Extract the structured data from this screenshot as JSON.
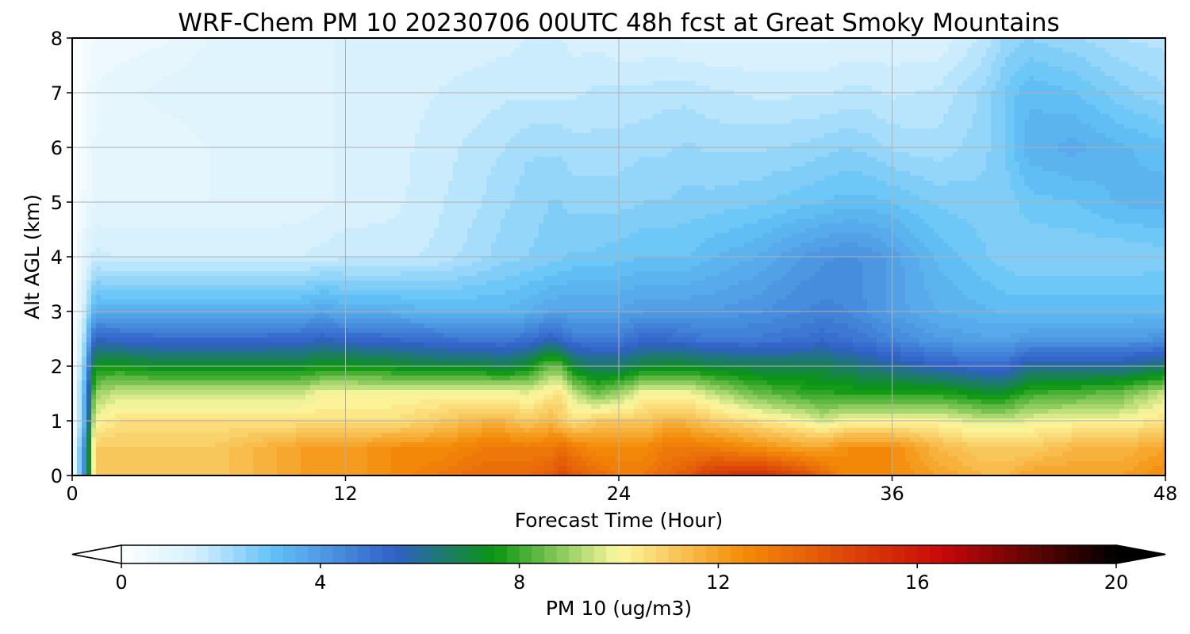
{
  "chart_data": {
    "type": "heatmap",
    "title": "WRF-Chem PM 10  20230706 00UTC 48h fcst at Great Smoky Mountains",
    "xlabel": "Forecast Time (Hour)",
    "ylabel": "Alt AGL (km)",
    "xlim": [
      0,
      48
    ],
    "ylim": [
      0,
      8
    ],
    "xticks": [
      0,
      12,
      24,
      36,
      48
    ],
    "yticks": [
      0,
      1,
      2,
      3,
      4,
      5,
      6,
      7,
      8
    ],
    "grid": true,
    "colorbar": {
      "label": "PM 10  (ug/m3)",
      "orientation": "horizontal",
      "placement": "bottom",
      "range": [
        0,
        20
      ],
      "ticks": [
        0,
        4,
        8,
        12,
        16,
        20
      ],
      "extend": "both",
      "colors": [
        "#ffffff",
        "#d4f0fc",
        "#64c3f6",
        "#3060c8",
        "#0a9610",
        "#fcf8a0",
        "#f48c08",
        "#c80808",
        "#000000"
      ]
    },
    "time_hours": [
      0,
      0.5,
      1,
      2,
      4,
      6,
      8,
      10,
      11,
      12,
      14,
      16,
      18,
      19,
      20,
      21,
      21.5,
      22,
      23,
      24,
      25,
      26,
      27,
      28,
      30,
      32,
      33,
      34,
      35,
      36,
      38,
      40,
      41,
      42,
      44,
      46,
      48
    ],
    "altitudes_km": [
      0,
      0.5,
      1,
      1.5,
      2,
      2.5,
      3,
      4,
      5,
      6,
      7,
      8
    ],
    "pm10_values": [
      [
        0,
        4,
        11,
        11,
        11,
        11,
        11.5,
        12,
        12.2,
        12,
        12.5,
        13,
        13.5,
        13.5,
        13.5,
        14,
        14.5,
        14,
        13.5,
        13,
        13,
        13.5,
        14,
        15,
        15.5,
        14.5,
        13.5,
        12.5,
        12.5,
        12.5,
        12,
        11.5,
        11.5,
        12,
        12,
        12,
        12.5
      ],
      [
        0,
        4,
        11,
        11,
        11,
        11,
        11.5,
        12,
        12,
        12,
        12.5,
        12.5,
        13,
        13,
        13,
        13,
        13.5,
        13,
        12.5,
        12.5,
        12.5,
        13,
        13,
        13,
        12.5,
        12,
        12,
        12.5,
        12.5,
        12.5,
        11.5,
        11,
        11,
        11,
        11.5,
        11.5,
        12
      ],
      [
        0,
        3,
        10,
        10.5,
        10.5,
        10.5,
        10.5,
        10.5,
        10.5,
        10.5,
        10.5,
        11,
        11.5,
        11.5,
        11,
        11.5,
        11,
        10.5,
        11,
        11,
        11,
        11.5,
        11.5,
        11,
        10.5,
        10,
        9.5,
        10,
        10,
        10,
        10,
        9.5,
        9.5,
        9.8,
        10,
        10,
        10.5
      ],
      [
        0,
        3,
        9,
        9.5,
        9.5,
        9.5,
        9.5,
        9.5,
        10,
        10,
        10,
        10,
        10,
        10,
        9.8,
        10.3,
        10.5,
        9.5,
        8.5,
        9,
        10,
        10,
        10,
        9.5,
        8.5,
        8,
        7.8,
        7.8,
        7.8,
        7.8,
        7.8,
        7.3,
        7.3,
        8,
        8.2,
        8.5,
        9.5
      ],
      [
        0,
        2.5,
        7.5,
        7.5,
        7.2,
        7.2,
        7.2,
        7.2,
        7.5,
        7.5,
        7.3,
        7,
        7,
        6.8,
        7.3,
        8.5,
        8.3,
        7,
        6.5,
        6.5,
        7,
        7.2,
        7.2,
        7,
        6.8,
        6.8,
        6.8,
        6.5,
        6.2,
        6,
        5.5,
        5.2,
        5.2,
        6,
        6,
        6,
        6.5
      ],
      [
        0,
        2,
        5.5,
        5.3,
        5.2,
        5.2,
        5.2,
        5.3,
        5.5,
        5.3,
        5.2,
        5,
        4.8,
        4.8,
        5,
        5.5,
        5.2,
        4.8,
        4.8,
        4.8,
        5.2,
        5.2,
        5,
        4.8,
        4.8,
        5,
        5.2,
        5,
        4.8,
        4.5,
        4,
        3.8,
        3.8,
        4,
        4,
        4,
        4.2
      ],
      [
        0,
        1.5,
        3.5,
        3.5,
        3.5,
        3.5,
        3.5,
        3.5,
        3.8,
        3.5,
        3.5,
        3.3,
        3.3,
        3.3,
        3.5,
        3.8,
        3.8,
        3.8,
        3.8,
        3.8,
        4,
        4,
        4,
        4,
        4.2,
        4.5,
        4.6,
        4.5,
        4.2,
        3.9,
        3.5,
        3.3,
        3.2,
        3.2,
        3.2,
        3.2,
        3.2
      ],
      [
        0,
        1,
        1.6,
        1.5,
        1.5,
        1.5,
        1.5,
        1.5,
        1.6,
        1.7,
        1.7,
        1.8,
        2.2,
        2.4,
        2.5,
        2.6,
        2.7,
        2.8,
        2.8,
        2.9,
        3,
        3,
        3,
        3.2,
        3.5,
        4,
        4.2,
        4.3,
        4.2,
        3.9,
        3.2,
        2.8,
        2.6,
        2.5,
        2.5,
        2.5,
        2.6
      ],
      [
        0,
        0.5,
        1,
        1,
        1,
        1,
        1,
        1.1,
        1.2,
        1.3,
        1.4,
        1.7,
        2,
        2.2,
        2.4,
        2.5,
        2.5,
        2.4,
        2.4,
        2.4,
        2.5,
        2.5,
        2.6,
        2.6,
        2.7,
        2.9,
        3,
        3.1,
        3.1,
        3.0,
        2.7,
        2.6,
        2.6,
        2.9,
        3,
        3.3,
        3.4
      ],
      [
        0,
        0.4,
        0.8,
        0.8,
        0.8,
        1,
        1.1,
        1.2,
        1.2,
        1.3,
        1.4,
        1.6,
        1.9,
        2,
        2.2,
        2.2,
        2.2,
        2.1,
        2.1,
        2.1,
        2.2,
        2.2,
        2.3,
        2.2,
        2.2,
        2.3,
        2.4,
        2.5,
        2.4,
        2.2,
        2.1,
        2.4,
        2.8,
        3.4,
        3.6,
        3.3,
        3.1
      ],
      [
        0,
        0.3,
        0.8,
        0.9,
        1.1,
        1.2,
        1.2,
        1.2,
        1.2,
        1.3,
        1.4,
        1.5,
        1.6,
        1.7,
        1.7,
        1.7,
        1.7,
        1.7,
        1.8,
        1.8,
        1.8,
        1.9,
        1.9,
        1.8,
        1.7,
        1.7,
        1.7,
        1.8,
        1.8,
        1.7,
        1.8,
        2.3,
        2.8,
        3.2,
        3.0,
        2.6,
        2.3
      ],
      [
        0,
        0.3,
        0.5,
        0.6,
        0.7,
        1.0,
        1.1,
        1.2,
        1.2,
        1.3,
        1.4,
        1.4,
        1.4,
        1.4,
        1.5,
        1.5,
        1.5,
        1.4,
        1.4,
        1.3,
        1.3,
        1.3,
        1.2,
        1.2,
        1.2,
        1.2,
        1.2,
        1.3,
        1.3,
        1.3,
        1.3,
        1.8,
        2.3,
        2.5,
        2.3,
        2.0,
        1.9
      ]
    ]
  }
}
